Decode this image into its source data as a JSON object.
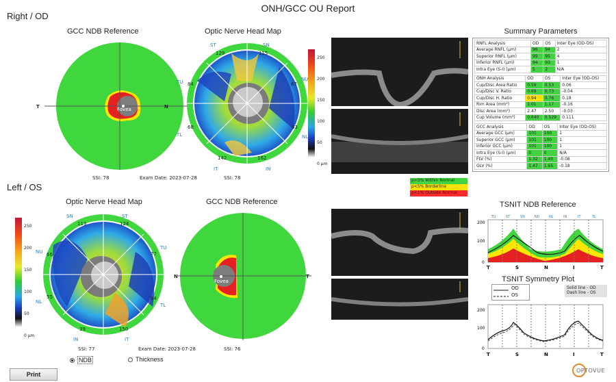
{
  "report_title": "ONH/GCC OU Report",
  "right_eye": {
    "title": "Right / OD",
    "gcc_title": "GCC NDB Reference",
    "onh_title": "Optic Nerve Head Map",
    "ssi_gcc": "SSI: 78",
    "ssi_onh": "SSI: 78",
    "exam_date": "Exam Date: 2023-07-28",
    "fovea": "Fovea",
    "gcc_T": "T",
    "gcc_N": "N",
    "sectors": {
      "ST": "ST",
      "SN": "SN",
      "TU": "TU",
      "NU": "NU",
      "TL": "TL",
      "NL": "NL",
      "IT": "IT",
      "IN": "IN"
    },
    "values": {
      "top_left": "129",
      "top_right": "115",
      "left_upper": "84",
      "right_upper": "67",
      "left_lower": "68",
      "right_lower": "63",
      "bottom_left": "142",
      "bottom_right": "162"
    }
  },
  "left_eye": {
    "title": "Left / OS",
    "onh_title": "Optic Nerve Head Map",
    "gcc_title": "GCC NDB Reference",
    "ssi_onh": "SSI: 77",
    "ssi_gcc": "SSI: 76",
    "exam_date": "Exam Date: 2023-07-28",
    "fovea": "Fovea",
    "gcc_N": "N",
    "gcc_T": "T",
    "sectors": {
      "SN": "SN",
      "ST": "ST",
      "NU": "NU",
      "TU": "TU",
      "NL": "NL",
      "TL": "TL",
      "IN": "IN",
      "IT": "IT"
    },
    "values": {
      "top_left": "113",
      "top_right": "124",
      "left_upper": "66",
      "right_upper": "77",
      "left_lower": "55",
      "right_lower": "64",
      "bottom_left": "39",
      "bottom_right": "150"
    }
  },
  "colorbar": {
    "ticks": [
      "250",
      "200",
      "150",
      "100",
      "50",
      "0 µm"
    ]
  },
  "legend": {
    "within": "p>5% Within Normal",
    "border": "p<5% Borderline",
    "outside": "p<1% Outside Normal"
  },
  "summary": {
    "title": "Summary Parameters",
    "rnfl": {
      "header": [
        "RNFL Analysis",
        "OD",
        "OS",
        "Inter Eye (OD-OS)"
      ],
      "rows": [
        [
          "Average RNFL (µm)",
          "96",
          "94",
          "2"
        ],
        [
          "Superior RNFL (µm)",
          "99",
          "95",
          "4"
        ],
        [
          "Inferior RNFL (µm)",
          "94",
          "93",
          "1"
        ],
        [
          "Intra Eye (S-I) (µm)",
          "5",
          "2",
          "N/A"
        ]
      ]
    },
    "onh": {
      "header": [
        "ONH Analysis",
        "OD",
        "OS",
        "Inter Eye (OD-OS)"
      ],
      "rows": [
        [
          "Cup/Disc Area Ratio",
          "0.59",
          "0.53",
          "0.06"
        ],
        [
          "Cup/Disc V. Ratio",
          "0.69",
          "0.73",
          "-0.04"
        ],
        [
          "Cup/Disc H. Ratio",
          "0.94",
          "0.76",
          "0.18"
        ],
        [
          "Rim Area (mm²)",
          "1.01",
          "1.17",
          "-0.16"
        ],
        [
          "Disc Area (mm²)",
          "2.47",
          "2.50",
          "-0.03"
        ],
        [
          "Cup Volume (mm³)",
          "0.640",
          "0.529",
          "0.111"
        ]
      ]
    },
    "gcc": {
      "header": [
        "GCC Analysis",
        "OD",
        "OS",
        "Inter Eye (OD-OS)"
      ],
      "rows": [
        [
          "Average GCC (µm)",
          "101",
          "100",
          "1"
        ],
        [
          "Superior GCC (µm)",
          "101",
          "100",
          "1"
        ],
        [
          "Inferior GCC (µm)",
          "101",
          "100",
          "1"
        ],
        [
          "Intra Eye (S-I) (µm)",
          "0",
          "0",
          "N/A"
        ],
        [
          "FLV (%)",
          "1.32",
          "1.40",
          "-0.08"
        ],
        [
          "GLV (%)",
          "1.47",
          "1.65",
          "-0.18"
        ]
      ]
    }
  },
  "tsnit_ndb": {
    "title": "TSNIT NDB Reference",
    "sectors": [
      "TU",
      "ST",
      "SN",
      "NU",
      "NL",
      "IN",
      "IT",
      "TL"
    ],
    "xticks": [
      "T",
      "S",
      "N",
      "I",
      "T"
    ],
    "yticks": [
      "200",
      "100",
      "0"
    ]
  },
  "tsnit_sym": {
    "title": "TSNIT Symmetry Plot",
    "legend_od": "OD",
    "legend_os": "OS",
    "note_solid": "Solid line - OD",
    "note_dash": "Dash line - OS",
    "xticks": [
      "T",
      "S",
      "N",
      "I",
      "T"
    ],
    "yticks": [
      "200",
      "100",
      "0"
    ]
  },
  "controls": {
    "ndb_label": "NDB",
    "thickness_label": "Thickness",
    "print_label": "Print"
  },
  "brand": "OPTOVUE"
}
